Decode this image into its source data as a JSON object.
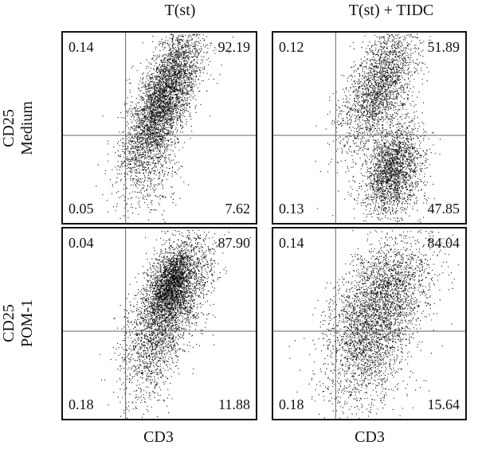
{
  "columns": [
    {
      "title": "T(st)",
      "xlabel": "CD3"
    },
    {
      "title": "T(st) + TIDC",
      "xlabel": "CD3"
    }
  ],
  "rows": [
    {
      "marker": "CD25",
      "condition": "Medium"
    },
    {
      "marker": "CD25",
      "condition": "POM-1"
    }
  ],
  "chart_data": [
    {
      "type": "scatter",
      "title": "T(st)",
      "row": "Medium",
      "xlabel": "CD3",
      "ylabel": "CD25",
      "quadrants": {
        "upper_left": "0.14",
        "upper_right": "92.19",
        "lower_left": "0.05",
        "lower_right": "7.62"
      },
      "clusters": [
        {
          "cx": 0.52,
          "cy": 0.65,
          "sx": 0.1,
          "sy": 0.2,
          "rho": 0.72,
          "n": 4200
        },
        {
          "cx": 0.46,
          "cy": 0.25,
          "sx": 0.08,
          "sy": 0.14,
          "rho": 0.3,
          "n": 300
        }
      ]
    },
    {
      "type": "scatter",
      "title": "T(st) + TIDC",
      "row": "Medium",
      "xlabel": "CD3",
      "ylabel": "CD25",
      "quadrants": {
        "upper_left": "0.12",
        "upper_right": "51.89",
        "lower_left": "0.13",
        "lower_right": "47.85"
      },
      "clusters": [
        {
          "cx": 0.55,
          "cy": 0.72,
          "sx": 0.1,
          "sy": 0.17,
          "rho": 0.6,
          "n": 2300
        },
        {
          "cx": 0.63,
          "cy": 0.3,
          "sx": 0.07,
          "sy": 0.11,
          "rho": 0.25,
          "n": 1700
        },
        {
          "cx": 0.6,
          "cy": 0.18,
          "sx": 0.09,
          "sy": 0.1,
          "rho": 0.0,
          "n": 500
        }
      ]
    },
    {
      "type": "scatter",
      "title": "T(st)",
      "row": "POM-1",
      "xlabel": "CD3",
      "ylabel": "CD25",
      "quadrants": {
        "upper_left": "0.04",
        "upper_right": "87.90",
        "lower_left": "0.18",
        "lower_right": "11.88"
      },
      "clusters": [
        {
          "cx": 0.56,
          "cy": 0.63,
          "sx": 0.1,
          "sy": 0.17,
          "rho": 0.55,
          "n": 3200
        },
        {
          "cx": 0.56,
          "cy": 0.73,
          "sx": 0.05,
          "sy": 0.08,
          "rho": 0.5,
          "n": 1200
        },
        {
          "cx": 0.45,
          "cy": 0.3,
          "sx": 0.08,
          "sy": 0.14,
          "rho": 0.3,
          "n": 500
        }
      ]
    },
    {
      "type": "scatter",
      "title": "T(st) + TIDC",
      "row": "POM-1",
      "xlabel": "CD3",
      "ylabel": "CD25",
      "quadrants": {
        "upper_left": "0.14",
        "upper_right": "84.04",
        "lower_left": "0.18",
        "lower_right": "15.64"
      },
      "clusters": [
        {
          "cx": 0.55,
          "cy": 0.6,
          "sx": 0.13,
          "sy": 0.18,
          "rho": 0.5,
          "n": 3000
        },
        {
          "cx": 0.5,
          "cy": 0.3,
          "sx": 0.12,
          "sy": 0.16,
          "rho": 0.3,
          "n": 800
        }
      ]
    }
  ]
}
